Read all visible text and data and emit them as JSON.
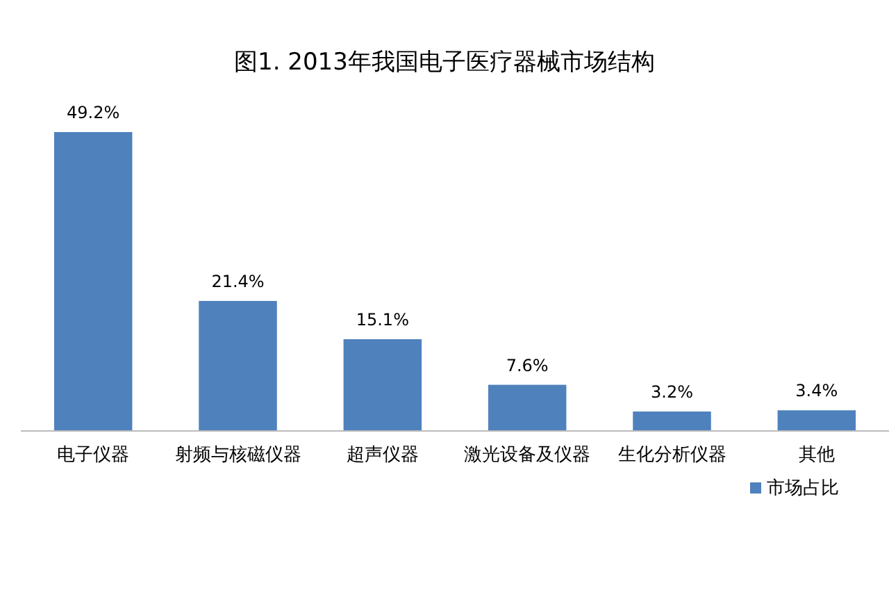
{
  "chart_data": {
    "type": "bar",
    "title": "图1. 2013年我国电子医疗器械市场结构",
    "categories": [
      "电子仪器",
      "射频与核磁仪器",
      "超声仪器",
      "激光设备及仪器",
      "生化分析仪器",
      "其他"
    ],
    "series": [
      {
        "name": "市场占比",
        "color": "#4f81bd",
        "values": [
          49.2,
          21.4,
          15.1,
          7.6,
          3.2,
          3.4
        ],
        "value_labels": [
          "49.2%",
          "21.4%",
          "15.1%",
          "7.6%",
          "3.2%",
          "3.4%"
        ]
      }
    ],
    "legend": "bottom right"
  }
}
